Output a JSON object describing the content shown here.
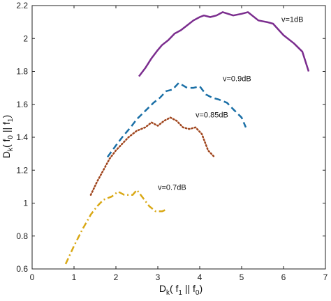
{
  "chart_data": {
    "type": "line",
    "xlim": [
      0,
      7
    ],
    "ylim": [
      0.6,
      2.2
    ],
    "x_ticks": [
      "0",
      "1",
      "2",
      "3",
      "4",
      "5",
      "6",
      "7"
    ],
    "y_ticks": [
      "0.6",
      "0.8",
      "1",
      "1.2",
      "1.4",
      "1.6",
      "1.8",
      "2",
      "2.2"
    ],
    "grid": false,
    "xlabel": {
      "main": "D",
      "sub": "k",
      "rest": "( f",
      "sub2": "1",
      "rest2": " || f",
      "sub3": "0",
      "rest3": ")"
    },
    "ylabel": {
      "main": "D",
      "sub": "k",
      "rest": "( f",
      "sub2": "0",
      "rest2": " || f",
      "sub3": "1",
      "rest3": ")"
    },
    "series": [
      {
        "label": "v=1dB",
        "color": "#7B2D8E",
        "style": "solid",
        "x": [
          2.55,
          2.7,
          2.85,
          3.0,
          3.1,
          3.25,
          3.4,
          3.55,
          3.7,
          3.85,
          4.0,
          4.1,
          4.25,
          4.4,
          4.55,
          4.8,
          5.0,
          5.15,
          5.4,
          5.6,
          5.75,
          6.0,
          6.25,
          6.45,
          6.6
        ],
        "y": [
          1.77,
          1.82,
          1.88,
          1.93,
          1.96,
          1.99,
          2.03,
          2.05,
          2.08,
          2.11,
          2.13,
          2.14,
          2.13,
          2.14,
          2.16,
          2.14,
          2.15,
          2.16,
          2.11,
          2.1,
          2.09,
          2.02,
          1.97,
          1.92,
          1.8
        ]
      },
      {
        "label": "v=0.9dB",
        "color": "#1A6FA6",
        "style": "dashed",
        "x": [
          1.8,
          2.0,
          2.15,
          2.35,
          2.5,
          2.7,
          2.9,
          3.05,
          3.2,
          3.35,
          3.5,
          3.7,
          3.85,
          4.0,
          4.15,
          4.3,
          4.45,
          4.65,
          4.8,
          5.0,
          5.1
        ],
        "y": [
          1.28,
          1.35,
          1.4,
          1.46,
          1.51,
          1.56,
          1.61,
          1.64,
          1.68,
          1.69,
          1.73,
          1.7,
          1.7,
          1.71,
          1.66,
          1.64,
          1.63,
          1.61,
          1.57,
          1.52,
          1.46
        ]
      },
      {
        "label": "v=0.85dB",
        "color": "#A0461E",
        "style": "dotted",
        "x": [
          1.4,
          1.55,
          1.7,
          1.85,
          2.0,
          2.15,
          2.3,
          2.5,
          2.7,
          2.85,
          3.0,
          3.15,
          3.3,
          3.45,
          3.6,
          3.75,
          3.9,
          4.05,
          4.2,
          4.35
        ],
        "y": [
          1.05,
          1.13,
          1.2,
          1.27,
          1.32,
          1.36,
          1.4,
          1.44,
          1.46,
          1.49,
          1.47,
          1.5,
          1.52,
          1.5,
          1.46,
          1.45,
          1.46,
          1.42,
          1.32,
          1.28
        ]
      },
      {
        "label": "v=0.7dB",
        "color": "#D9A815",
        "style": "dashdot",
        "x": [
          0.8,
          1.0,
          1.2,
          1.4,
          1.55,
          1.7,
          1.9,
          2.05,
          2.2,
          2.4,
          2.5,
          2.65,
          2.8,
          2.95,
          3.1,
          3.2
        ],
        "y": [
          0.63,
          0.74,
          0.84,
          0.93,
          0.98,
          1.02,
          1.04,
          1.07,
          1.05,
          1.05,
          1.08,
          1.03,
          0.98,
          0.95,
          0.95,
          0.96
        ]
      }
    ],
    "annotations": [
      {
        "text": "v=1dB",
        "x": 5.95,
        "y": 2.1
      },
      {
        "text": "v=0.9dB",
        "x": 4.55,
        "y": 1.74
      },
      {
        "text": "v=0.85dB",
        "x": 3.9,
        "y": 1.52
      },
      {
        "text": "v=0.7dB",
        "x": 3.0,
        "y": 1.08
      }
    ]
  }
}
